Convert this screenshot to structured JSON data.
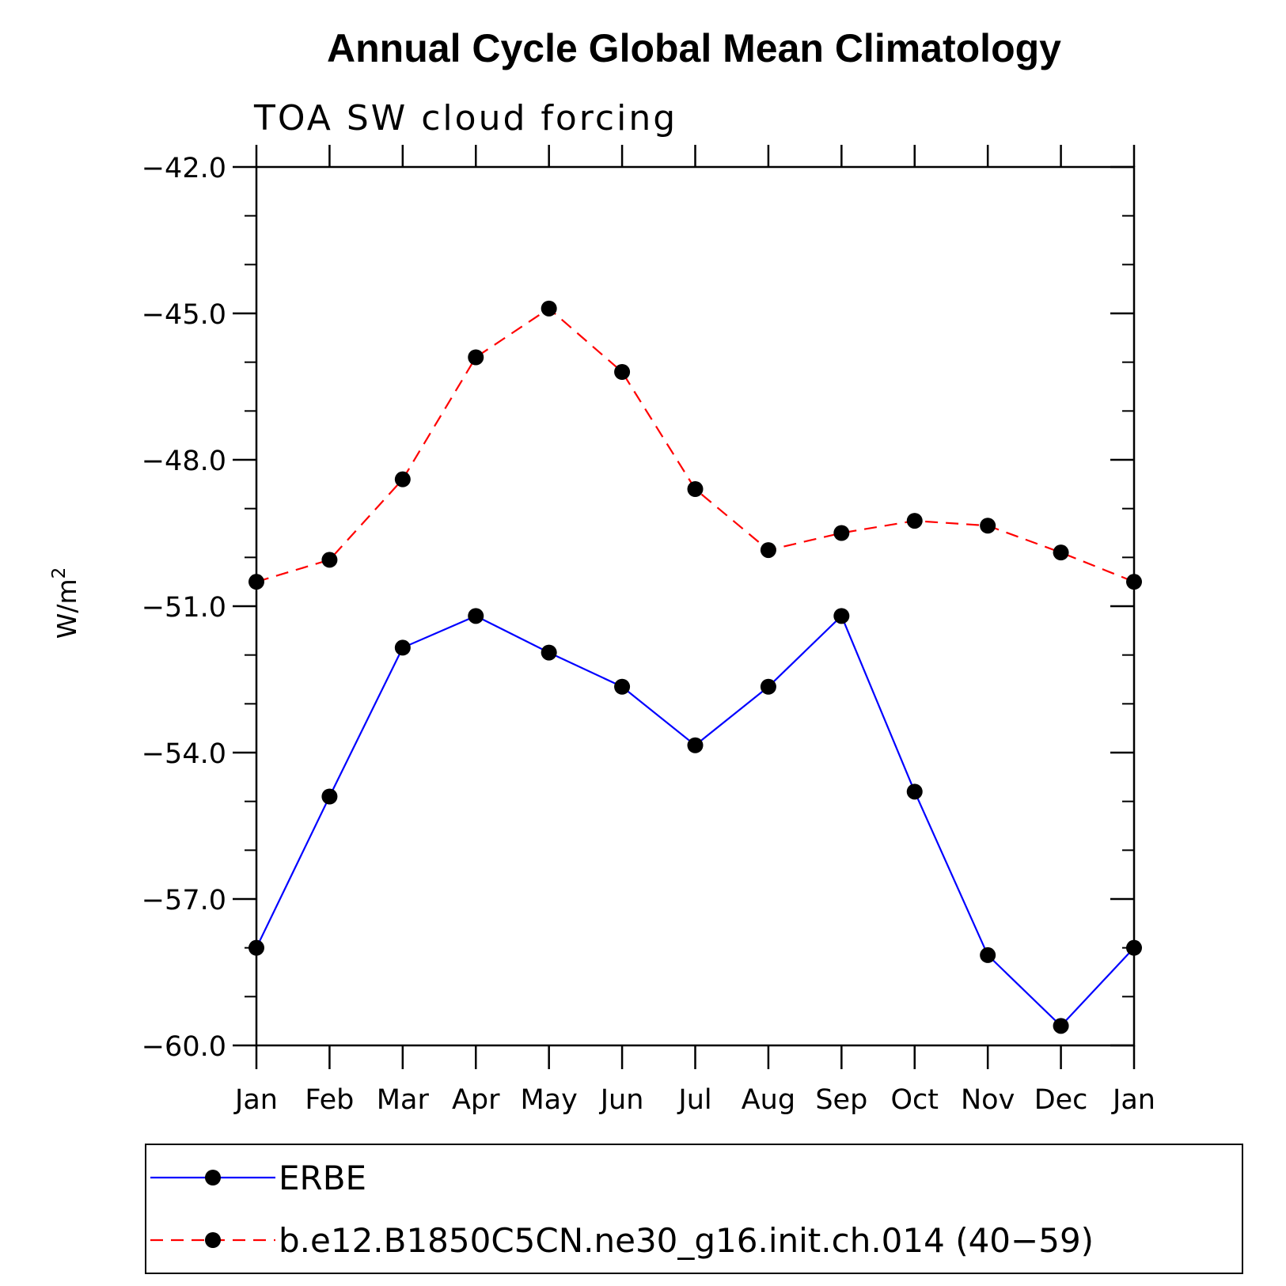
{
  "chart_data": {
    "type": "line",
    "title": "Annual Cycle Global Mean Climatology",
    "subtitle": "TOA SW cloud forcing",
    "ylabel": "W/m",
    "ylabel_sup": "2",
    "xlabel": "",
    "categories": [
      "Jan",
      "Feb",
      "Mar",
      "Apr",
      "May",
      "Jun",
      "Jul",
      "Aug",
      "Sep",
      "Oct",
      "Nov",
      "Dec",
      "Jan"
    ],
    "ylim": [
      -60.0,
      -42.0
    ],
    "yticks": [
      -42.0,
      -45.0,
      -48.0,
      -51.0,
      -54.0,
      -57.0,
      -60.0
    ],
    "ytick_labels": [
      "−42.0",
      "−45.0",
      "−48.0",
      "−51.0",
      "−54.0",
      "−57.0",
      "−60.0"
    ],
    "y_minor_step": 1.0,
    "grid": false,
    "legend_position": "bottom",
    "series": [
      {
        "name": "ERBE",
        "color": "#0000ff",
        "style": "solid",
        "marker": "filled-circle",
        "values": [
          -58.0,
          -54.9,
          -51.85,
          -51.2,
          -51.95,
          -52.65,
          -53.85,
          -52.65,
          -51.2,
          -54.8,
          -58.15,
          -59.6,
          -58.0
        ]
      },
      {
        "name": "b.e12.B1850C5CN.ne30_g16.init.ch.014 (40−59)",
        "color": "#ff0000",
        "style": "dashed",
        "marker": "filled-circle",
        "values": [
          -50.5,
          -50.05,
          -48.4,
          -45.9,
          -44.9,
          -46.2,
          -48.6,
          -49.85,
          -49.5,
          -49.25,
          -49.35,
          -49.9,
          -50.5
        ]
      }
    ]
  }
}
